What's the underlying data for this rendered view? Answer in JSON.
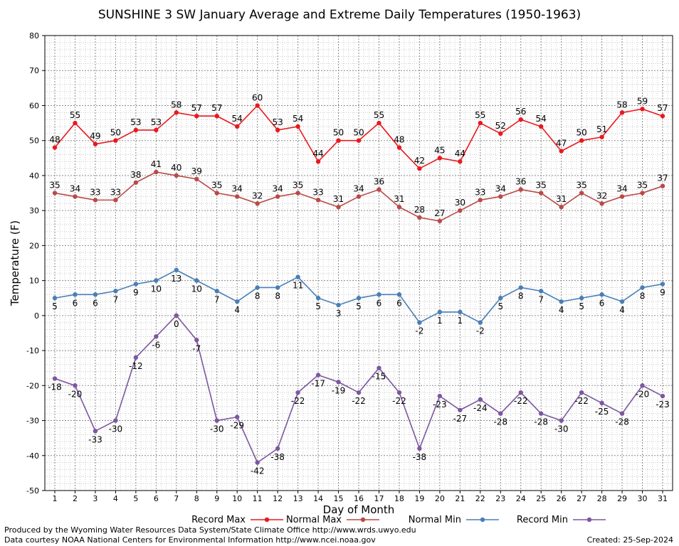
{
  "chart_data": {
    "type": "line",
    "title": "SUNSHINE 3 SW January Average and Extreme Daily Temperatures (1950-1963)",
    "xlabel": "Day of Month",
    "ylabel": "Temperature (F)",
    "ylim": [
      -50,
      80
    ],
    "yticks": [
      80,
      70,
      60,
      50,
      40,
      30,
      20,
      10,
      0,
      -10,
      -20,
      -30,
      -40,
      -50
    ],
    "x": [
      1,
      2,
      3,
      4,
      5,
      6,
      7,
      8,
      9,
      10,
      11,
      12,
      13,
      14,
      15,
      16,
      17,
      18,
      19,
      20,
      21,
      22,
      23,
      24,
      25,
      26,
      27,
      28,
      29,
      30,
      31
    ],
    "grid": true,
    "legend_position": "bottom",
    "series": [
      {
        "name": "Record Max",
        "color": "#e8191e",
        "values": [
          48,
          55,
          49,
          50,
          53,
          53,
          58,
          57,
          57,
          54,
          60,
          53,
          54,
          44,
          50,
          50,
          55,
          48,
          42,
          45,
          44,
          55,
          52,
          56,
          54,
          47,
          50,
          51,
          58,
          59,
          57
        ]
      },
      {
        "name": "Normal Max",
        "color": "#b94a48",
        "values": [
          35,
          34,
          33,
          33,
          38,
          41,
          40,
          39,
          35,
          34,
          32,
          34,
          35,
          33,
          31,
          34,
          36,
          31,
          28,
          27,
          30,
          33,
          34,
          36,
          35,
          31,
          35,
          32,
          34,
          35,
          37
        ]
      },
      {
        "name": "Normal Min",
        "color": "#4a7fb5",
        "values": [
          5,
          6,
          6,
          7,
          9,
          10,
          13,
          10,
          7,
          4,
          8,
          8,
          11,
          5,
          3,
          5,
          6,
          6,
          -2,
          1,
          1,
          -2,
          5,
          8,
          7,
          4,
          5,
          6,
          4,
          8,
          9
        ]
      },
      {
        "name": "Record Min",
        "color": "#7d57a0",
        "values": [
          -18,
          -20,
          -33,
          -30,
          -12,
          -6,
          0,
          -7,
          -30,
          -29,
          -42,
          -38,
          -22,
          -17,
          -19,
          -22,
          -15,
          -22,
          -38,
          -23,
          -27,
          -24,
          -28,
          -22,
          -28,
          -30,
          -22,
          -25,
          -28,
          -20,
          -23
        ]
      }
    ]
  },
  "footer": {
    "line1": "Produced by the Wyoming Water Resources Data System/State Climate Office http://www.wrds.uwyo.edu",
    "line2": "Data courtesy NOAA National Centers for Environmental Information http://www.ncei.noaa.gov",
    "created": "Created:  25-Sep-2024"
  }
}
